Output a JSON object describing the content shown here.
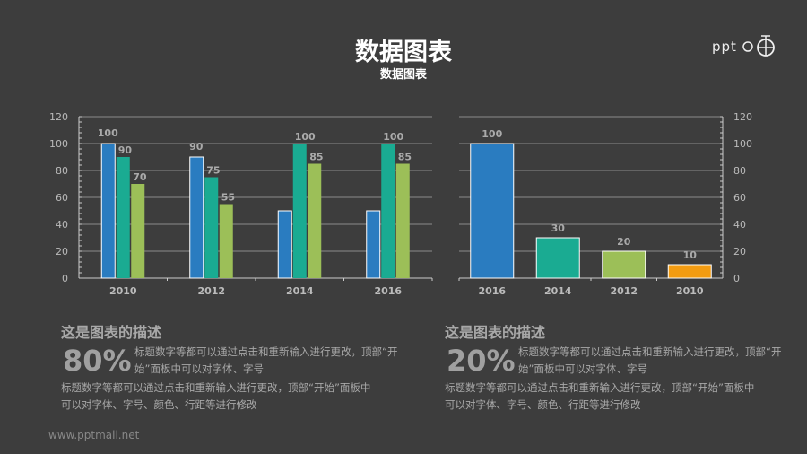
{
  "header": {
    "title": "数据图表",
    "subtitle": "数据图表",
    "logo": "PPT 〇⊕"
  },
  "chart_data": [
    {
      "type": "bar",
      "categories": [
        "2010",
        "2012",
        "2014",
        "2016"
      ],
      "series": [
        {
          "values": [
            100,
            90,
            50,
            50
          ],
          "labels": [
            "100",
            "90",
            "",
            ""
          ],
          "color": "#2a7cc0"
        },
        {
          "values": [
            90,
            75,
            100,
            100
          ],
          "labels": [
            "90",
            "75",
            "100",
            "100"
          ],
          "color": "#1aab92"
        },
        {
          "values": [
            70,
            55,
            85,
            85
          ],
          "labels": [
            "70",
            "55",
            "85",
            "85"
          ],
          "color": "#9cbf58"
        }
      ],
      "ylim": [
        0,
        120
      ],
      "yticks": [
        0,
        20,
        40,
        60,
        80,
        100,
        120
      ],
      "grid": true,
      "axis": "left"
    },
    {
      "type": "bar",
      "categories": [
        "2016",
        "2014",
        "2012",
        "2010"
      ],
      "values": [
        100,
        30,
        20,
        10
      ],
      "labels": [
        "100",
        "30",
        "20",
        "10"
      ],
      "colors": [
        "#2a7cc0",
        "#1aab92",
        "#9cbf58",
        "#f39c12"
      ],
      "ylim": [
        0,
        120
      ],
      "yticks": [
        0,
        20,
        40,
        60,
        80,
        100,
        120
      ],
      "grid": true,
      "axis": "right"
    }
  ],
  "descriptions": [
    {
      "heading": "这是图表的描述",
      "percent": "80%",
      "line1": "标题数字等都可以通过点击和重新输入进行更改，顶部“开始”面板中可以对字体、字号",
      "line2": "标题数字等都可以通过点击和重新输入进行更改，顶部“开始”面板中可以对字体、字号、颜色、行距等进行修改"
    },
    {
      "heading": "这是图表的描述",
      "percent": "20%",
      "line1": "标题数字等都可以通过点击和重新输入进行更改，顶部“开始”面板中可以对字体、字号",
      "line2": "标题数字等都可以通过点击和重新输入进行更改，顶部“开始”面板中可以对字体、字号、颜色、行距等进行修改"
    }
  ],
  "footer": "www.pptmall.net"
}
